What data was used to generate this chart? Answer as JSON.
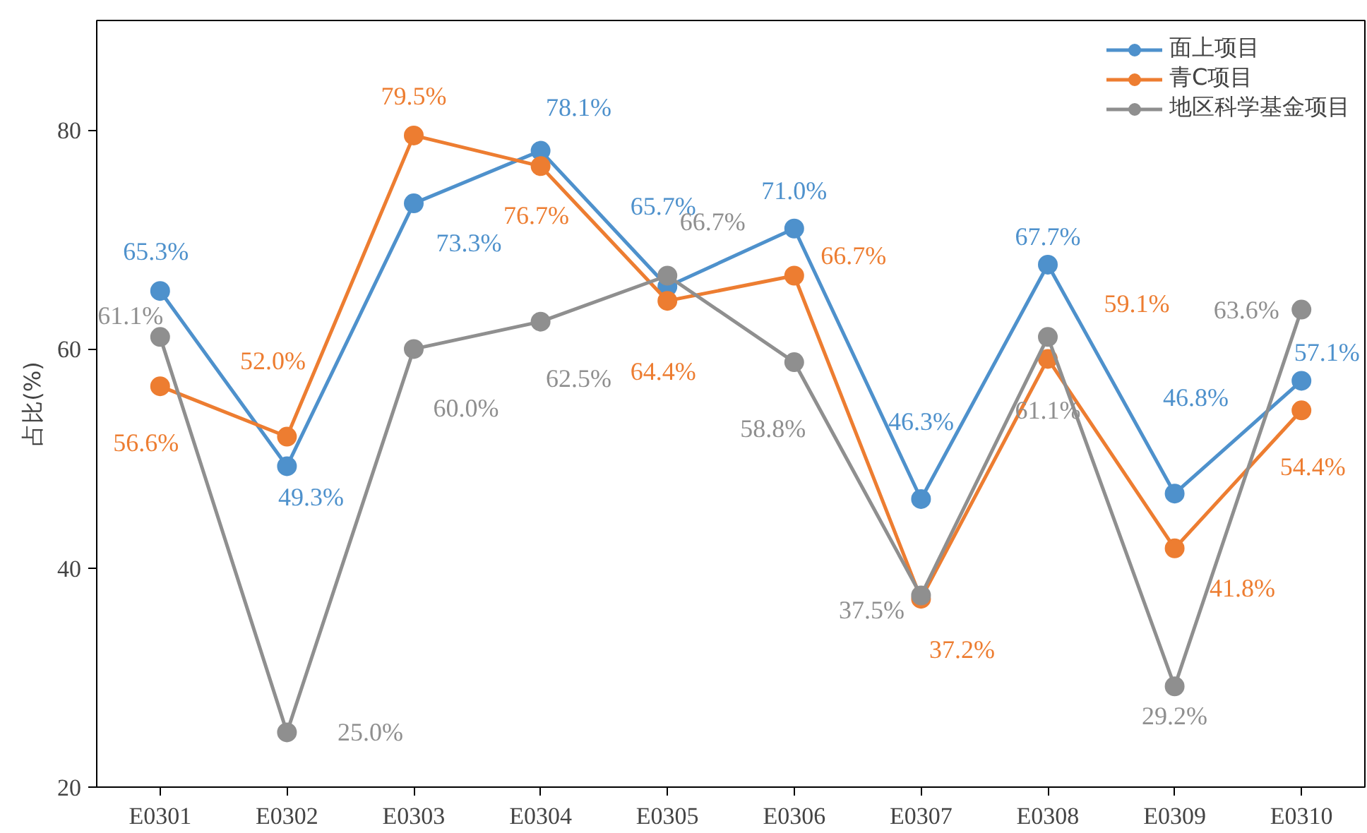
{
  "chart_data": {
    "type": "line",
    "ylabel": "占比(%)",
    "categories": [
      "E0301",
      "E0302",
      "E0303",
      "E0304",
      "E0305",
      "E0306",
      "E0307",
      "E0308",
      "E0309",
      "E0310"
    ],
    "ylim": [
      20,
      90
    ],
    "yticks": [
      20,
      40,
      60,
      80
    ],
    "grid": false,
    "legend": "top right",
    "marker": "circle",
    "line_style": "solid",
    "series": [
      {
        "name": "面上项目",
        "color": "#4e91cc",
        "values": [
          65.3,
          49.3,
          73.3,
          78.1,
          65.7,
          71.0,
          46.3,
          67.7,
          46.8,
          57.1
        ],
        "value_labels": [
          "65.3%",
          "49.3%",
          "73.3%",
          "78.1%",
          "65.7%",
          "71.0%",
          "46.3%",
          "67.7%",
          "46.8%",
          "57.1%"
        ]
      },
      {
        "name": "青C项目",
        "color": "#ed7d31",
        "values": [
          56.6,
          52.0,
          79.5,
          76.7,
          64.4,
          66.7,
          37.2,
          59.1,
          41.8,
          54.4
        ],
        "value_labels": [
          "56.6%",
          "52.0%",
          "79.5%",
          "76.7%",
          "64.4%",
          "66.7%",
          "37.2%",
          "59.1%",
          "41.8%",
          "54.4%"
        ]
      },
      {
        "name": "地区科学基金项目",
        "color": "#8f8f8f",
        "values": [
          61.1,
          25.0,
          60.0,
          62.5,
          66.7,
          58.8,
          37.5,
          61.1,
          29.2,
          63.6
        ],
        "value_labels": [
          "61.1%",
          "25.0%",
          "60.0%",
          "62.5%",
          "66.7%",
          "58.8%",
          "37.5%",
          "61.1%",
          "29.2%",
          "63.6%"
        ]
      }
    ]
  }
}
